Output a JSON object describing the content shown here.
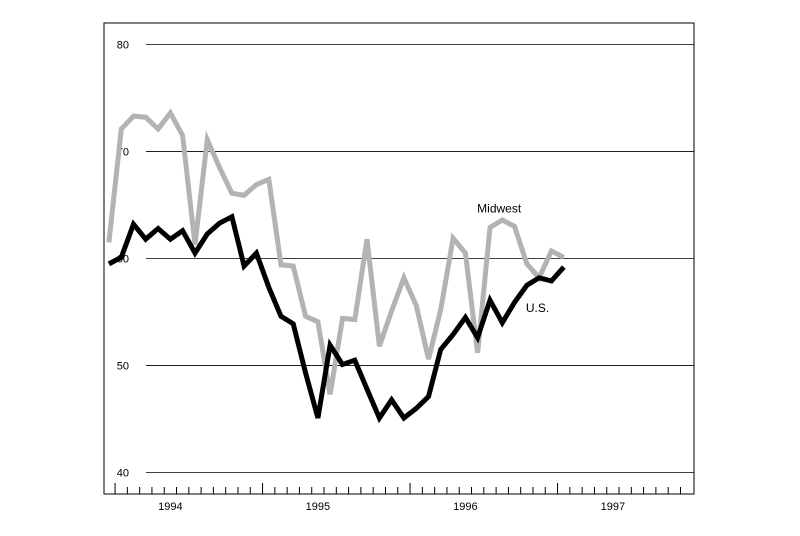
{
  "chart_data": {
    "type": "line",
    "title": "",
    "xlabel": "",
    "ylabel": "",
    "ylim": [
      38,
      82
    ],
    "yticks": [
      40,
      50,
      60,
      70,
      80
    ],
    "ytick_labels": [
      "40",
      "50",
      "60",
      "70",
      "80"
    ],
    "xlim": [
      1993.55,
      1997.55
    ],
    "xtick_labels": [
      {
        "x": 1994.0,
        "label": "1994"
      },
      {
        "x": 1995.0,
        "label": "1995"
      },
      {
        "x": 1996.0,
        "label": "1996"
      },
      {
        "x": 1997.0,
        "label": "1997"
      }
    ],
    "grid": "horizontal",
    "legend": "none",
    "series": [
      {
        "name": "Midwest",
        "color": "#b3b3b3",
        "x": [
          1993.583,
          1993.667,
          1993.75,
          1993.833,
          1993.917,
          1994.0,
          1994.083,
          1994.167,
          1994.25,
          1994.333,
          1994.417,
          1994.5,
          1994.583,
          1994.667,
          1994.75,
          1994.833,
          1994.917,
          1995.0,
          1995.083,
          1995.167,
          1995.25,
          1995.333,
          1995.417,
          1995.5,
          1995.583,
          1995.667,
          1995.75,
          1995.833,
          1995.917,
          1996.0,
          1996.083,
          1996.167,
          1996.25,
          1996.333,
          1996.417,
          1996.5,
          1996.583,
          1996.667
        ],
        "values": [
          61.5,
          72.1,
          73.3,
          73.2,
          72.1,
          73.6,
          71.5,
          61.3,
          71.1,
          68.5,
          66.1,
          65.9,
          66.9,
          67.4,
          59.4,
          59.3,
          54.6,
          54.1,
          47.3,
          54.4,
          54.3,
          61.8,
          51.8,
          55.1,
          58.2,
          55.6,
          50.6,
          55.2,
          61.9,
          60.5,
          51.2,
          62.9,
          63.6,
          63.0,
          59.5,
          58.2,
          60.7,
          60.1
        ]
      },
      {
        "name": "U.S.",
        "color": "#000000",
        "x": [
          1993.583,
          1993.667,
          1993.75,
          1993.833,
          1993.917,
          1994.0,
          1994.083,
          1994.167,
          1994.25,
          1994.333,
          1994.417,
          1994.5,
          1994.583,
          1994.667,
          1994.75,
          1994.833,
          1994.917,
          1995.0,
          1995.083,
          1995.167,
          1995.25,
          1995.333,
          1995.417,
          1995.5,
          1995.583,
          1995.667,
          1995.75,
          1995.833,
          1995.917,
          1996.0,
          1996.083,
          1996.167,
          1996.25,
          1996.333,
          1996.417,
          1996.5,
          1996.583,
          1996.667
        ],
        "values": [
          59.5,
          60.1,
          63.2,
          61.8,
          62.8,
          61.8,
          62.6,
          60.5,
          62.3,
          63.3,
          63.9,
          59.3,
          60.5,
          57.3,
          54.6,
          53.9,
          49.3,
          45.1,
          51.9,
          50.1,
          50.5,
          47.8,
          45.1,
          46.8,
          45.1,
          46.0,
          47.1,
          51.5,
          52.9,
          54.5,
          52.6,
          56.1,
          54.0,
          55.9,
          57.5,
          58.2,
          57.9,
          59.2
        ]
      }
    ]
  }
}
